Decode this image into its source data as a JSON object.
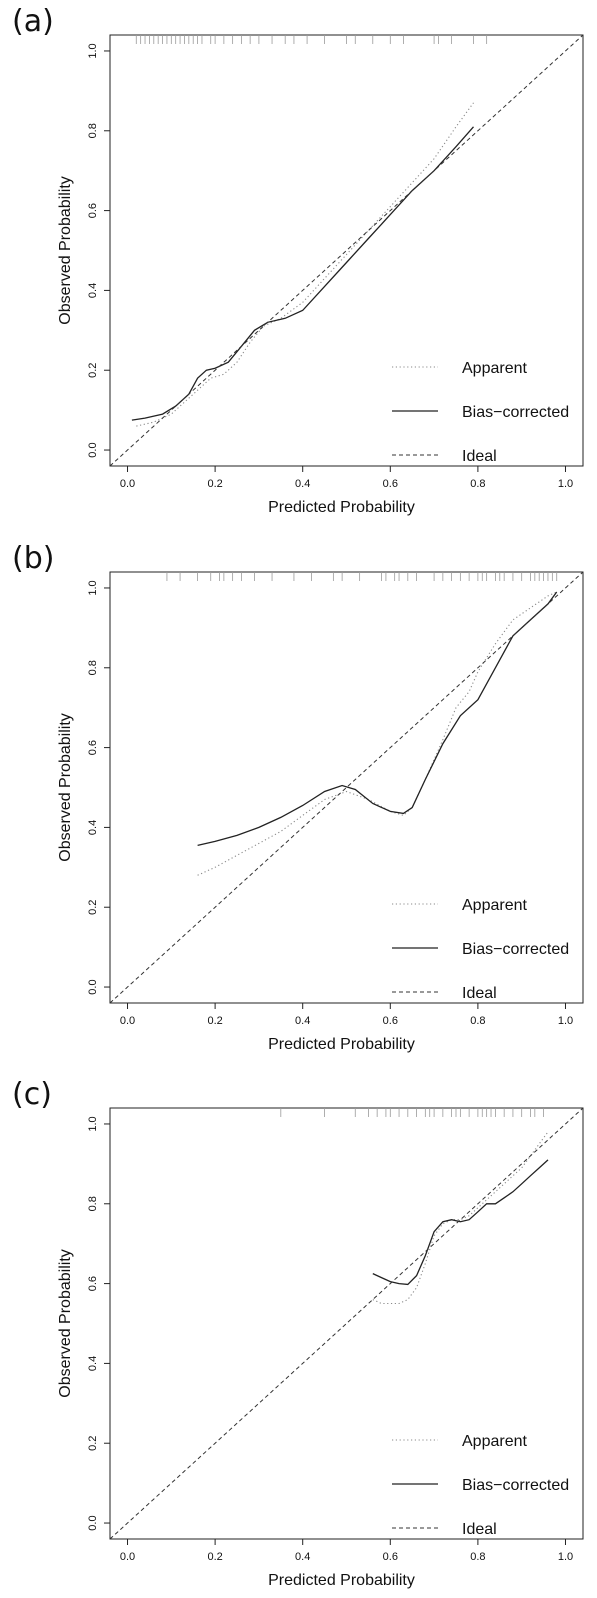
{
  "chart_data": [
    {
      "panel_label": "(a)",
      "type": "line",
      "xlabel": "Predicted Probability",
      "ylabel": "Observed  Probability",
      "xlim": [
        -0.04,
        1.04
      ],
      "ylim": [
        -0.04,
        1.04
      ],
      "xticks": [
        "0.0",
        "0.2",
        "0.4",
        "0.6",
        "0.8",
        "1.0"
      ],
      "yticks": [
        "0.0",
        "0.2",
        "0.4",
        "0.6",
        "0.8",
        "1.0"
      ],
      "legend": {
        "position": "bottom-right",
        "entries": [
          "Apparent",
          "Bias−corrected",
          "Ideal"
        ]
      },
      "series": [
        {
          "name": "Apparent",
          "style": "dotted",
          "x": [
            0.02,
            0.06,
            0.1,
            0.13,
            0.16,
            0.19,
            0.22,
            0.25,
            0.28,
            0.31,
            0.35,
            0.4,
            0.45,
            0.5,
            0.55,
            0.6,
            0.65,
            0.7,
            0.75,
            0.79
          ],
          "y": [
            0.06,
            0.07,
            0.09,
            0.12,
            0.15,
            0.18,
            0.19,
            0.22,
            0.27,
            0.31,
            0.33,
            0.37,
            0.43,
            0.49,
            0.55,
            0.61,
            0.67,
            0.73,
            0.81,
            0.87
          ]
        },
        {
          "name": "Bias−corrected",
          "style": "solid",
          "x": [
            0.01,
            0.04,
            0.08,
            0.11,
            0.14,
            0.16,
            0.18,
            0.2,
            0.23,
            0.26,
            0.29,
            0.32,
            0.36,
            0.4,
            0.45,
            0.5,
            0.55,
            0.6,
            0.65,
            0.7,
            0.75,
            0.79
          ],
          "y": [
            0.075,
            0.08,
            0.09,
            0.11,
            0.14,
            0.18,
            0.2,
            0.205,
            0.22,
            0.26,
            0.3,
            0.32,
            0.33,
            0.35,
            0.41,
            0.47,
            0.53,
            0.59,
            0.65,
            0.7,
            0.76,
            0.81
          ]
        },
        {
          "name": "Ideal",
          "style": "dashed",
          "x": [
            -0.04,
            1.04
          ],
          "y": [
            -0.04,
            1.04
          ]
        }
      ],
      "rug": [
        0.02,
        0.03,
        0.04,
        0.05,
        0.06,
        0.07,
        0.08,
        0.09,
        0.1,
        0.11,
        0.12,
        0.13,
        0.14,
        0.15,
        0.16,
        0.17,
        0.19,
        0.2,
        0.22,
        0.24,
        0.26,
        0.28,
        0.3,
        0.33,
        0.36,
        0.38,
        0.41,
        0.45,
        0.5,
        0.52,
        0.56,
        0.6,
        0.63,
        0.7,
        0.71,
        0.74,
        0.79,
        0.82
      ]
    },
    {
      "panel_label": "(b)",
      "type": "line",
      "xlabel": "Predicted Probability",
      "ylabel": "Observed  Probability",
      "xlim": [
        -0.04,
        1.04
      ],
      "ylim": [
        -0.04,
        1.04
      ],
      "xticks": [
        "0.0",
        "0.2",
        "0.4",
        "0.6",
        "0.8",
        "1.0"
      ],
      "yticks": [
        "0.0",
        "0.2",
        "0.4",
        "0.6",
        "0.8",
        "1.0"
      ],
      "legend": {
        "position": "bottom-right",
        "entries": [
          "Apparent",
          "Bias−corrected",
          "Ideal"
        ]
      },
      "series": [
        {
          "name": "Apparent",
          "style": "dotted",
          "x": [
            0.16,
            0.2,
            0.25,
            0.3,
            0.35,
            0.4,
            0.45,
            0.5,
            0.55,
            0.6,
            0.63,
            0.65,
            0.68,
            0.72,
            0.75,
            0.78,
            0.8,
            0.84,
            0.88,
            0.92,
            0.96,
            0.98
          ],
          "y": [
            0.28,
            0.3,
            0.33,
            0.36,
            0.39,
            0.43,
            0.47,
            0.49,
            0.47,
            0.44,
            0.43,
            0.45,
            0.52,
            0.62,
            0.7,
            0.74,
            0.79,
            0.86,
            0.92,
            0.95,
            0.98,
            0.99
          ]
        },
        {
          "name": "Bias−corrected",
          "style": "solid",
          "x": [
            0.16,
            0.2,
            0.25,
            0.3,
            0.35,
            0.4,
            0.45,
            0.49,
            0.52,
            0.56,
            0.6,
            0.63,
            0.65,
            0.68,
            0.72,
            0.76,
            0.8,
            0.84,
            0.88,
            0.92,
            0.96,
            0.98
          ],
          "y": [
            0.355,
            0.365,
            0.38,
            0.4,
            0.425,
            0.455,
            0.49,
            0.505,
            0.495,
            0.46,
            0.44,
            0.435,
            0.45,
            0.52,
            0.61,
            0.68,
            0.72,
            0.8,
            0.88,
            0.92,
            0.96,
            0.99
          ]
        },
        {
          "name": "Ideal",
          "style": "dashed",
          "x": [
            -0.04,
            1.04
          ],
          "y": [
            -0.04,
            1.04
          ]
        }
      ],
      "rug": [
        0.09,
        0.12,
        0.16,
        0.19,
        0.21,
        0.22,
        0.24,
        0.26,
        0.29,
        0.33,
        0.38,
        0.42,
        0.47,
        0.49,
        0.53,
        0.58,
        0.59,
        0.61,
        0.62,
        0.64,
        0.66,
        0.7,
        0.72,
        0.74,
        0.76,
        0.78,
        0.8,
        0.81,
        0.82,
        0.84,
        0.85,
        0.86,
        0.88,
        0.9,
        0.92,
        0.93,
        0.94,
        0.95,
        0.96,
        0.97,
        0.98
      ]
    },
    {
      "panel_label": "(c)",
      "type": "line",
      "xlabel": "Predicted Probability",
      "ylabel": "Observed  Probability",
      "xlim": [
        -0.04,
        1.04
      ],
      "ylim": [
        -0.04,
        1.04
      ],
      "xticks": [
        "0.0",
        "0.2",
        "0.4",
        "0.6",
        "0.8",
        "1.0"
      ],
      "yticks": [
        "0.0",
        "0.2",
        "0.4",
        "0.6",
        "0.8",
        "1.0"
      ],
      "legend": {
        "position": "bottom-right",
        "entries": [
          "Apparent",
          "Bias−corrected",
          "Ideal"
        ]
      },
      "series": [
        {
          "name": "Apparent",
          "style": "dotted",
          "x": [
            0.56,
            0.58,
            0.6,
            0.62,
            0.64,
            0.66,
            0.68,
            0.7,
            0.72,
            0.74,
            0.76,
            0.78,
            0.8,
            0.82,
            0.84,
            0.86,
            0.88,
            0.9,
            0.92,
            0.94,
            0.96
          ],
          "y": [
            0.56,
            0.55,
            0.55,
            0.55,
            0.56,
            0.59,
            0.65,
            0.72,
            0.75,
            0.76,
            0.76,
            0.77,
            0.79,
            0.81,
            0.83,
            0.85,
            0.87,
            0.89,
            0.92,
            0.95,
            0.98
          ]
        },
        {
          "name": "Bias−corrected",
          "style": "solid",
          "x": [
            0.56,
            0.58,
            0.6,
            0.62,
            0.64,
            0.66,
            0.68,
            0.7,
            0.72,
            0.74,
            0.76,
            0.78,
            0.8,
            0.82,
            0.84,
            0.86,
            0.88,
            0.9,
            0.92,
            0.94,
            0.96
          ],
          "y": [
            0.625,
            0.615,
            0.605,
            0.6,
            0.598,
            0.62,
            0.67,
            0.73,
            0.755,
            0.76,
            0.755,
            0.76,
            0.78,
            0.8,
            0.8,
            0.815,
            0.83,
            0.85,
            0.87,
            0.89,
            0.91
          ]
        },
        {
          "name": "Ideal",
          "style": "dashed",
          "x": [
            -0.04,
            1.04
          ],
          "y": [
            -0.04,
            1.04
          ]
        }
      ],
      "rug": [
        0.35,
        0.45,
        0.52,
        0.55,
        0.57,
        0.59,
        0.6,
        0.62,
        0.64,
        0.66,
        0.68,
        0.69,
        0.7,
        0.72,
        0.74,
        0.75,
        0.76,
        0.78,
        0.8,
        0.81,
        0.82,
        0.83,
        0.84,
        0.86,
        0.88,
        0.9,
        0.92,
        0.93,
        0.95
      ]
    }
  ]
}
